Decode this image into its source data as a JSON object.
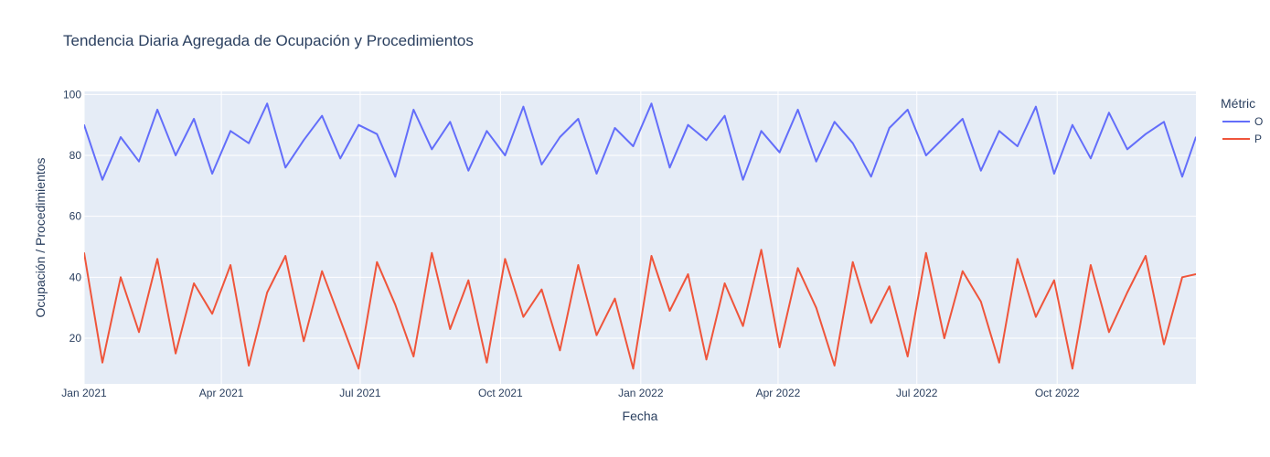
{
  "chart_data": {
    "type": "line",
    "title": "Tendencia Diaria Agregada de Ocupación y Procedimientos",
    "xlabel": "Fecha",
    "ylabel": "Ocupación / Procedimientos",
    "x_range": [
      "2021-01-01",
      "2022-12-31"
    ],
    "ylim": [
      5,
      101
    ],
    "grid": true,
    "legend_placement": "top-right",
    "legend_title": "Métric",
    "x_ticks": [
      {
        "date": "2021-01-01",
        "label": "Jan 2021"
      },
      {
        "date": "2021-04-01",
        "label": "Apr 2021"
      },
      {
        "date": "2021-07-01",
        "label": "Jul 2021"
      },
      {
        "date": "2021-10-01",
        "label": "Oct 2021"
      },
      {
        "date": "2022-01-01",
        "label": "Jan 2022"
      },
      {
        "date": "2022-04-01",
        "label": "Apr 2022"
      },
      {
        "date": "2022-07-01",
        "label": "Jul 2022"
      },
      {
        "date": "2022-10-01",
        "label": "Oct 2022"
      }
    ],
    "y_ticks": [
      20,
      40,
      60,
      80,
      100
    ],
    "series": [
      {
        "legend_label": "O",
        "color": "#636efa",
        "x": [
          "2021-01-01",
          "2021-01-13",
          "2021-01-25",
          "2021-02-06",
          "2021-02-18",
          "2021-03-02",
          "2021-03-14",
          "2021-03-26",
          "2021-04-07",
          "2021-04-19",
          "2021-05-01",
          "2021-05-13",
          "2021-05-25",
          "2021-06-06",
          "2021-06-18",
          "2021-06-30",
          "2021-07-12",
          "2021-07-24",
          "2021-08-05",
          "2021-08-17",
          "2021-08-29",
          "2021-09-10",
          "2021-09-22",
          "2021-10-04",
          "2021-10-16",
          "2021-10-28",
          "2021-11-09",
          "2021-11-21",
          "2021-12-03",
          "2021-12-15",
          "2021-12-27",
          "2022-01-08",
          "2022-01-20",
          "2022-02-01",
          "2022-02-13",
          "2022-02-25",
          "2022-03-09",
          "2022-03-21",
          "2022-04-02",
          "2022-04-14",
          "2022-04-26",
          "2022-05-08",
          "2022-05-20",
          "2022-06-01",
          "2022-06-13",
          "2022-06-25",
          "2022-07-07",
          "2022-07-19",
          "2022-07-31",
          "2022-08-12",
          "2022-08-24",
          "2022-09-05",
          "2022-09-17",
          "2022-09-29",
          "2022-10-11",
          "2022-10-23",
          "2022-11-04",
          "2022-11-16",
          "2022-11-28",
          "2022-12-10",
          "2022-12-22",
          "2022-12-31"
        ],
        "values": [
          90,
          72,
          86,
          78,
          95,
          80,
          92,
          74,
          88,
          84,
          97,
          76,
          85,
          93,
          79,
          90,
          87,
          73,
          95,
          82,
          91,
          75,
          88,
          80,
          96,
          77,
          86,
          92,
          74,
          89,
          83,
          97,
          76,
          90,
          85,
          93,
          72,
          88,
          81,
          95,
          78,
          91,
          84,
          73,
          89,
          95,
          80,
          86,
          92,
          75,
          88,
          83,
          96,
          74,
          90,
          79,
          94,
          82,
          87,
          91,
          73,
          86
        ]
      },
      {
        "legend_label": "P",
        "color": "#ef553b",
        "x": [
          "2021-01-01",
          "2021-01-13",
          "2021-01-25",
          "2021-02-06",
          "2021-02-18",
          "2021-03-02",
          "2021-03-14",
          "2021-03-26",
          "2021-04-07",
          "2021-04-19",
          "2021-05-01",
          "2021-05-13",
          "2021-05-25",
          "2021-06-06",
          "2021-06-18",
          "2021-06-30",
          "2021-07-12",
          "2021-07-24",
          "2021-08-05",
          "2021-08-17",
          "2021-08-29",
          "2021-09-10",
          "2021-09-22",
          "2021-10-04",
          "2021-10-16",
          "2021-10-28",
          "2021-11-09",
          "2021-11-21",
          "2021-12-03",
          "2021-12-15",
          "2021-12-27",
          "2022-01-08",
          "2022-01-20",
          "2022-02-01",
          "2022-02-13",
          "2022-02-25",
          "2022-03-09",
          "2022-03-21",
          "2022-04-02",
          "2022-04-14",
          "2022-04-26",
          "2022-05-08",
          "2022-05-20",
          "2022-06-01",
          "2022-06-13",
          "2022-06-25",
          "2022-07-07",
          "2022-07-19",
          "2022-07-31",
          "2022-08-12",
          "2022-08-24",
          "2022-09-05",
          "2022-09-17",
          "2022-09-29",
          "2022-10-11",
          "2022-10-23",
          "2022-11-04",
          "2022-11-16",
          "2022-11-28",
          "2022-12-10",
          "2022-12-22",
          "2022-12-31"
        ],
        "values": [
          48,
          12,
          40,
          22,
          46,
          15,
          38,
          28,
          44,
          11,
          35,
          47,
          19,
          42,
          26,
          10,
          45,
          31,
          14,
          48,
          23,
          39,
          12,
          46,
          27,
          36,
          16,
          44,
          21,
          33,
          10,
          47,
          29,
          41,
          13,
          38,
          24,
          49,
          17,
          43,
          30,
          11,
          45,
          25,
          37,
          14,
          48,
          20,
          42,
          32,
          12,
          46,
          27,
          39,
          10,
          44,
          22,
          35,
          47,
          18,
          40,
          41
        ]
      }
    ]
  }
}
